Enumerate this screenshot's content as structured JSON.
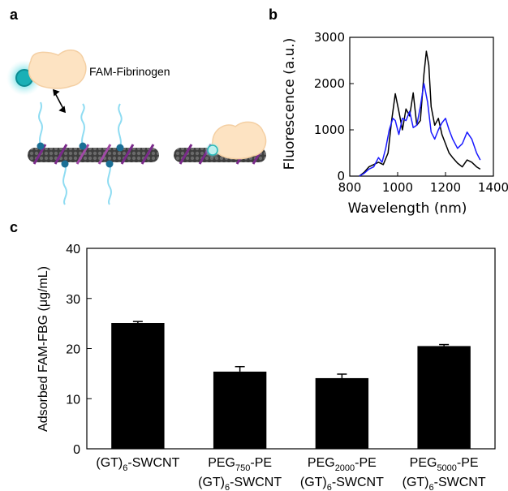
{
  "panels": {
    "a": {
      "letter": "a",
      "protein_label": "FAM-Fibrinogen"
    },
    "b": {
      "letter": "b"
    },
    "c": {
      "letter": "c"
    }
  },
  "chart_data": [
    {
      "panel": "b",
      "type": "line",
      "xlabel": "Wavelength (nm)",
      "ylabel": "Fluorescence (a.u.)",
      "xlim": [
        800,
        1400
      ],
      "ylim": [
        0,
        3000
      ],
      "xticks": [
        "800",
        "1000",
        "1200",
        "1400"
      ],
      "yticks": [
        "0",
        "1000",
        "2000",
        "3000"
      ],
      "grid": false,
      "series": [
        {
          "color": "#000000",
          "x": [
            840,
            860,
            880,
            900,
            920,
            940,
            960,
            975,
            990,
            1005,
            1020,
            1035,
            1050,
            1065,
            1080,
            1095,
            1110,
            1120,
            1130,
            1140,
            1155,
            1170,
            1185,
            1200,
            1215,
            1230,
            1250,
            1270,
            1290,
            1310,
            1330,
            1345
          ],
          "y": [
            0,
            80,
            200,
            250,
            300,
            250,
            500,
            1200,
            1780,
            1400,
            1000,
            1450,
            1300,
            1800,
            1100,
            1200,
            2200,
            2700,
            2400,
            1500,
            1100,
            1250,
            900,
            700,
            500,
            400,
            280,
            200,
            350,
            300,
            200,
            150
          ]
        },
        {
          "color": "#1a1aff",
          "x": [
            840,
            860,
            880,
            900,
            920,
            935,
            950,
            965,
            980,
            990,
            1005,
            1020,
            1035,
            1050,
            1065,
            1080,
            1095,
            1110,
            1125,
            1140,
            1155,
            1170,
            1185,
            1200,
            1215,
            1230,
            1250,
            1270,
            1290,
            1310,
            1330,
            1345
          ],
          "y": [
            0,
            60,
            150,
            200,
            400,
            300,
            600,
            1000,
            1250,
            1200,
            900,
            1250,
            1200,
            1400,
            1050,
            1100,
            1500,
            2000,
            1600,
            950,
            800,
            1000,
            1150,
            1250,
            1000,
            800,
            600,
            700,
            950,
            800,
            500,
            350
          ]
        }
      ]
    },
    {
      "panel": "c",
      "type": "bar",
      "ylabel": "Adsorbed FAM-FBG (μg/mL)",
      "ylim": [
        0,
        40
      ],
      "yticks": [
        "0",
        "10",
        "20",
        "30",
        "40"
      ],
      "grid": false,
      "bar_color": "#000000",
      "categories": [
        {
          "line1": [
            "(GT)",
            "6",
            "-SWCNT"
          ],
          "line2": null
        },
        {
          "line1": [
            "PEG",
            "750",
            "-PE"
          ],
          "line2": [
            "(GT)",
            "6",
            "-SWCNT"
          ]
        },
        {
          "line1": [
            "PEG",
            "2000",
            "-PE"
          ],
          "line2": [
            "(GT)",
            "6",
            "-SWCNT"
          ]
        },
        {
          "line1": [
            "PEG",
            "5000",
            "-PE"
          ],
          "line2": [
            "(GT)",
            "6",
            "-SWCNT"
          ]
        }
      ],
      "values": [
        25.1,
        15.4,
        14.1,
        20.5
      ],
      "errors": [
        0.3,
        1.0,
        0.8,
        0.3
      ]
    }
  ]
}
